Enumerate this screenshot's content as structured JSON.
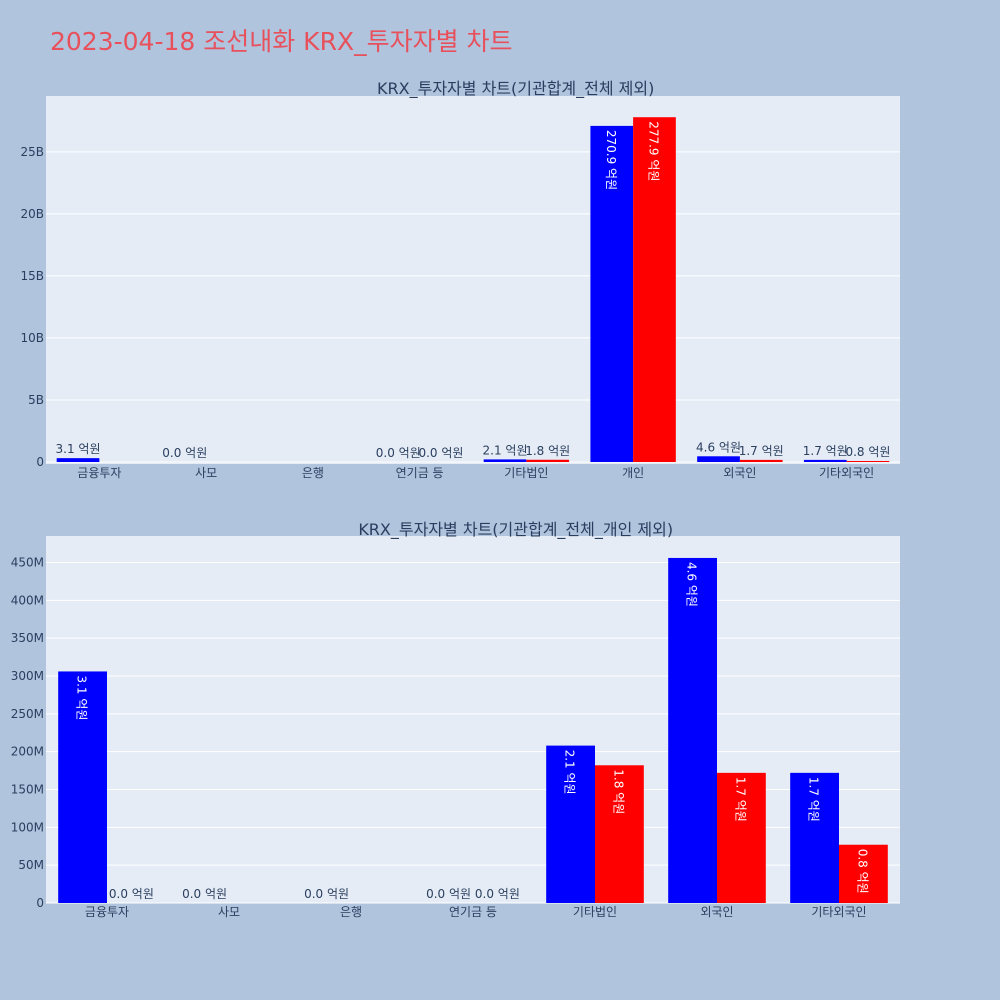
{
  "page": {
    "title": "2023-04-18 조선내화 KRX_투자자별 차트"
  },
  "colors": {
    "buy": "#0000ff",
    "sell": "#ff0000",
    "plot_bg": "#e5ecf6",
    "page_bg": "#b0c4de",
    "title": "#e8505b"
  },
  "chart_data": [
    {
      "type": "bar",
      "title": "KRX_투자자별 차트(기관합계_전체 제외)",
      "categories": [
        "금융투자",
        "사모",
        "은행",
        "연기금 등",
        "기타법인",
        "개인",
        "외국인",
        "기타외국인"
      ],
      "ylim": [
        0,
        29500000000
      ],
      "yticks": [
        0,
        5000000000,
        10000000000,
        15000000000,
        20000000000,
        25000000000
      ],
      "ytick_labels": [
        "0",
        "5B",
        "10B",
        "15B",
        "20B",
        "25B"
      ],
      "grid": true,
      "series": [
        {
          "color_key": "buy",
          "values": [
            310000000,
            0,
            null,
            0,
            210000000,
            27090000000,
            460000000,
            170000000
          ],
          "labels": [
            "3.1 억원",
            "0.0 억원",
            "",
            "0.0 억원",
            "2.1 억원",
            "270.9 억원",
            "4.6 억원",
            "1.7 억원"
          ]
        },
        {
          "color_key": "sell",
          "values": [
            null,
            null,
            null,
            0,
            180000000,
            27790000000,
            170000000,
            80000000
          ],
          "labels": [
            "",
            "",
            "",
            "0.0 억원",
            "1.8 억원",
            "277.9 억원",
            "1.7 억원",
            "0.8 억원"
          ]
        }
      ]
    },
    {
      "type": "bar",
      "title": "KRX_투자자별 차트(기관합계_전체_개인 제외)",
      "categories": [
        "금융투자",
        "사모",
        "은행",
        "연기금 등",
        "기타법인",
        "외국인",
        "기타외국인"
      ],
      "ylim": [
        0,
        485000000
      ],
      "yticks": [
        0,
        50000000,
        100000000,
        150000000,
        200000000,
        250000000,
        300000000,
        350000000,
        400000000,
        450000000
      ],
      "ytick_labels": [
        "0",
        "50M",
        "100M",
        "150M",
        "200M",
        "250M",
        "300M",
        "350M",
        "400M",
        "450M"
      ],
      "grid": true,
      "series": [
        {
          "color_key": "buy",
          "values": [
            306000000,
            0,
            0,
            0,
            208000000,
            456000000,
            172000000
          ],
          "labels": [
            "3.1 억원",
            "0.0 억원",
            "0.0 억원",
            "0.0 억원",
            "2.1 억원",
            "4.6 억원",
            "1.7 억원"
          ]
        },
        {
          "color_key": "sell",
          "values": [
            0,
            null,
            null,
            0,
            182000000,
            172000000,
            77000000
          ],
          "labels": [
            "0.0 억원",
            "",
            "",
            "0.0 억원",
            "1.8 억원",
            "1.7 억원",
            "0.8 억원"
          ]
        }
      ]
    }
  ]
}
